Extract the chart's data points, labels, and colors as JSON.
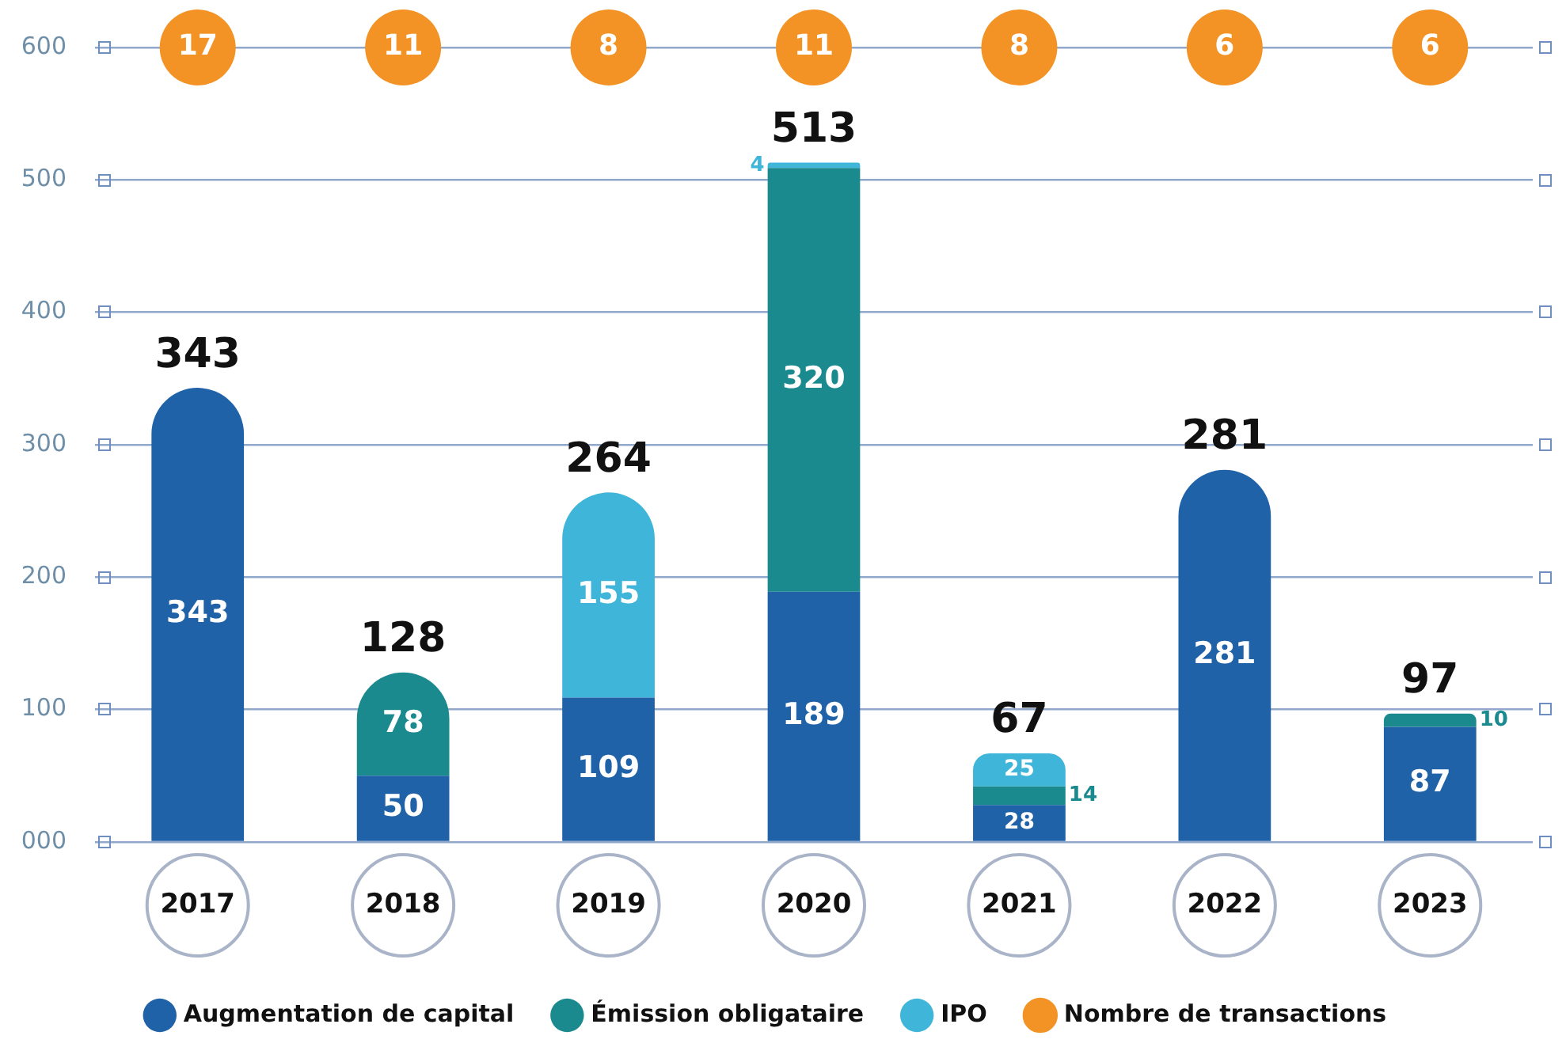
{
  "chart_data": {
    "type": "bar",
    "stacked": true,
    "categories": [
      "2017",
      "2018",
      "2019",
      "2020",
      "2021",
      "2022",
      "2023"
    ],
    "series": [
      {
        "name": "Augmentation de capital",
        "color": "#1f62a8",
        "values": [
          343,
          50,
          109,
          189,
          28,
          281,
          87
        ]
      },
      {
        "name": "Émission obligataire",
        "color": "#1a8a8e",
        "values": [
          null,
          78,
          null,
          320,
          14,
          null,
          10
        ]
      },
      {
        "name": "IPO",
        "color": "#3fb6d9",
        "values": [
          null,
          null,
          155,
          4,
          25,
          null,
          null
        ]
      },
      {
        "name": "Nombre de transactions",
        "type": "scatter",
        "color": "#f39325",
        "values": [
          null,
          null,
          null,
          null,
          null,
          null,
          null
        ]
      }
    ],
    "data_labels": true,
    "totals": [
      "343",
      "128",
      "264",
      "513",
      "67",
      "281",
      "97"
    ],
    "annotations": [
      "17",
      "11",
      "8",
      "11",
      "8",
      "6",
      "6"
    ],
    "ylim": [
      0,
      600
    ],
    "yticks": [
      {
        "value": 0,
        "label": "000"
      },
      100,
      200,
      300,
      400,
      500,
      600
    ],
    "grid": "y",
    "legend": "bottom"
  }
}
